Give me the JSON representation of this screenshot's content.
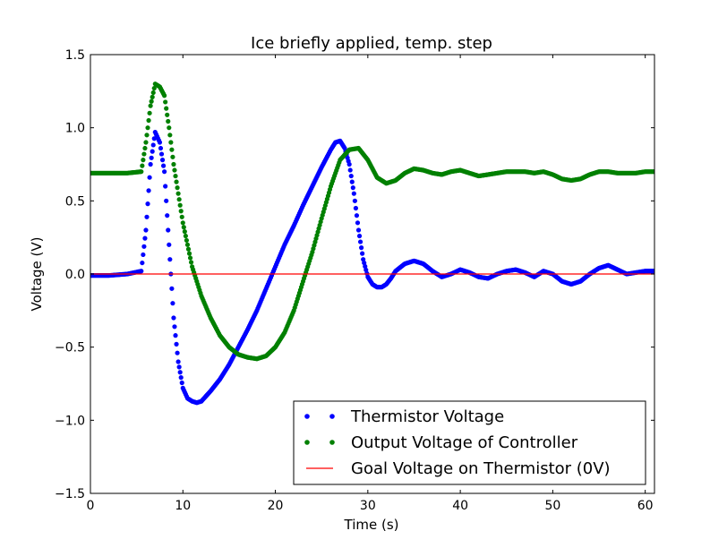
{
  "chart_data": {
    "type": "scatter",
    "title": "Ice briefly applied, temp. step",
    "xlabel": "Time (s)",
    "ylabel": "Voltage (V)",
    "xlim": [
      0,
      61
    ],
    "ylim": [
      -1.5,
      1.5
    ],
    "x_ticks": [
      0,
      10,
      20,
      30,
      40,
      50,
      60
    ],
    "y_ticks": [
      -1.5,
      -1.0,
      -0.5,
      0.0,
      0.5,
      1.0,
      1.5
    ],
    "x_tick_labels": [
      "0",
      "10",
      "20",
      "30",
      "40",
      "50",
      "60"
    ],
    "y_tick_labels": [
      "−1.5",
      "−1.0",
      "−0.5",
      "0.0",
      "0.5",
      "1.0",
      "1.5"
    ],
    "grid": false,
    "legend_position": "bottom-right",
    "series": [
      {
        "name": "Thermistor Voltage",
        "style": "dots",
        "color": "#0000ff",
        "x": [
          0,
          2,
          4,
          5.5,
          6.0,
          6.5,
          7.0,
          7.5,
          8.0,
          8.5,
          9.0,
          9.5,
          10.0,
          10.5,
          11.0,
          11.5,
          12.0,
          13.0,
          14.0,
          15.0,
          16.0,
          17.0,
          18.0,
          19.0,
          20.0,
          21.0,
          22.0,
          23.0,
          24.0,
          25.0,
          26.0,
          26.5,
          27.0,
          27.5,
          28.0,
          28.5,
          29.0,
          29.5,
          30.0,
          30.5,
          31.0,
          31.5,
          32.0,
          32.5,
          33.0,
          34.0,
          35.0,
          36.0,
          37.0,
          38.0,
          39.0,
          40.0,
          41.0,
          42.0,
          43.0,
          44.0,
          45.0,
          46.0,
          47.0,
          48.0,
          49.0,
          50.0,
          51.0,
          52.0,
          53.0,
          54.0,
          55.0,
          56.0,
          57.0,
          58.0,
          59.0,
          60.0,
          61.0
        ],
        "y": [
          -0.01,
          -0.01,
          0.0,
          0.02,
          0.3,
          0.75,
          0.97,
          0.9,
          0.7,
          0.2,
          -0.3,
          -0.6,
          -0.78,
          -0.85,
          -0.87,
          -0.88,
          -0.87,
          -0.8,
          -0.72,
          -0.62,
          -0.5,
          -0.38,
          -0.25,
          -0.1,
          0.05,
          0.2,
          0.33,
          0.47,
          0.6,
          0.73,
          0.85,
          0.9,
          0.91,
          0.86,
          0.75,
          0.55,
          0.3,
          0.1,
          -0.02,
          -0.07,
          -0.09,
          -0.09,
          -0.07,
          -0.03,
          0.02,
          0.07,
          0.09,
          0.07,
          0.02,
          -0.02,
          0.0,
          0.03,
          0.01,
          -0.02,
          -0.03,
          0.0,
          0.02,
          0.03,
          0.01,
          -0.02,
          0.02,
          0.0,
          -0.05,
          -0.07,
          -0.05,
          0.0,
          0.04,
          0.06,
          0.03,
          0.0,
          0.01,
          0.02,
          0.02
        ]
      },
      {
        "name": "Output Voltage of Controller",
        "style": "dots",
        "color": "#008000",
        "x": [
          0,
          2,
          4,
          5.5,
          6.0,
          6.5,
          7.0,
          7.5,
          8.0,
          8.5,
          9.0,
          10.0,
          11.0,
          12.0,
          13.0,
          14.0,
          15.0,
          16.0,
          17.0,
          18.0,
          19.0,
          20.0,
          21.0,
          22.0,
          23.0,
          24.0,
          25.0,
          26.0,
          27.0,
          28.0,
          29.0,
          30.0,
          31.0,
          32.0,
          33.0,
          34.0,
          35.0,
          36.0,
          37.0,
          38.0,
          39.0,
          40.0,
          41.0,
          42.0,
          43.0,
          44.0,
          45.0,
          46.0,
          47.0,
          48.0,
          49.0,
          50.0,
          51.0,
          52.0,
          53.0,
          54.0,
          55.0,
          56.0,
          57.0,
          58.0,
          59.0,
          60.0,
          61.0
        ],
        "y": [
          0.69,
          0.69,
          0.69,
          0.7,
          0.9,
          1.15,
          1.3,
          1.28,
          1.22,
          1.0,
          0.75,
          0.35,
          0.05,
          -0.15,
          -0.3,
          -0.42,
          -0.5,
          -0.55,
          -0.57,
          -0.58,
          -0.56,
          -0.5,
          -0.4,
          -0.25,
          -0.05,
          0.15,
          0.38,
          0.6,
          0.78,
          0.85,
          0.86,
          0.78,
          0.66,
          0.62,
          0.64,
          0.69,
          0.72,
          0.71,
          0.69,
          0.68,
          0.7,
          0.71,
          0.69,
          0.67,
          0.68,
          0.69,
          0.7,
          0.7,
          0.7,
          0.69,
          0.7,
          0.68,
          0.65,
          0.64,
          0.65,
          0.68,
          0.7,
          0.7,
          0.69,
          0.69,
          0.69,
          0.7,
          0.7
        ]
      },
      {
        "name": "Goal Voltage on Thermistor (0V)",
        "style": "line",
        "color": "#ff0000",
        "x": [
          0,
          61
        ],
        "y": [
          0.0,
          0.0
        ]
      }
    ]
  }
}
